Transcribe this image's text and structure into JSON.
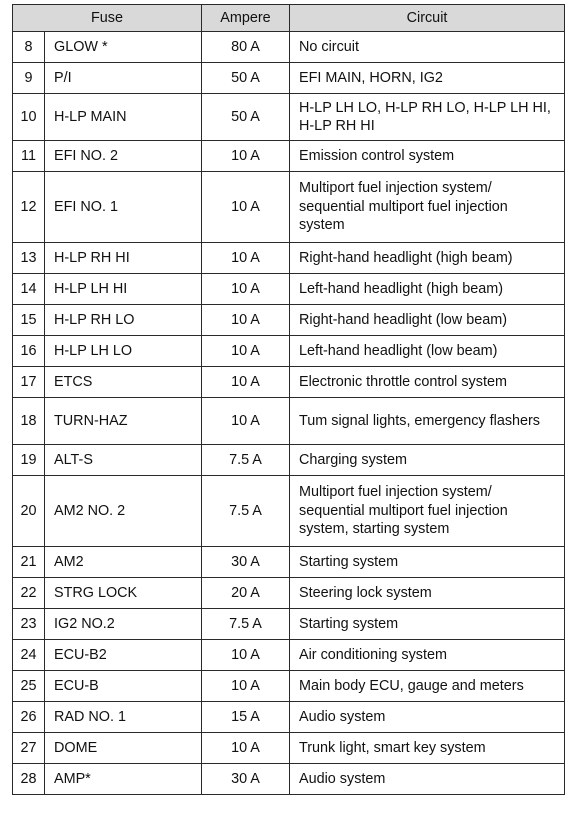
{
  "table": {
    "headers": {
      "fuse": "Fuse",
      "ampere": "Ampere",
      "circuit": "Circuit"
    },
    "rows": [
      {
        "no": "8",
        "fuse": "GLOW *",
        "ampere": "80 A",
        "circuit": "No circuit"
      },
      {
        "no": "9",
        "fuse": "P/I",
        "ampere": "50 A",
        "circuit": "EFI MAIN, HORN, IG2"
      },
      {
        "no": "10",
        "fuse": "H-LP MAIN",
        "ampere": "50 A",
        "circuit": "H-LP LH LO, H-LP RH LO, H-LP LH HI, H-LP RH HI"
      },
      {
        "no": "11",
        "fuse": "EFI NO. 2",
        "ampere": "10 A",
        "circuit": "Emission control system"
      },
      {
        "no": "12",
        "fuse": "EFI NO. 1",
        "ampere": "10 A",
        "circuit": "Multiport fuel injection system/ sequential multiport fuel injection system"
      },
      {
        "no": "13",
        "fuse": "H-LP RH HI",
        "ampere": "10 A",
        "circuit": "Right-hand headlight (high beam)"
      },
      {
        "no": "14",
        "fuse": "H-LP LH HI",
        "ampere": "10 A",
        "circuit": "Left-hand headlight (high beam)"
      },
      {
        "no": "15",
        "fuse": "H-LP RH LO",
        "ampere": "10 A",
        "circuit": "Right-hand headlight (low beam)"
      },
      {
        "no": "16",
        "fuse": "H-LP LH LO",
        "ampere": "10 A",
        "circuit": "Left-hand headlight (low beam)"
      },
      {
        "no": "17",
        "fuse": "ETCS",
        "ampere": "10 A",
        "circuit": "Electronic throttle control system"
      },
      {
        "no": "18",
        "fuse": "TURN-HAZ",
        "ampere": "10 A",
        "circuit": "Tum signal lights, emergency flashers"
      },
      {
        "no": "19",
        "fuse": "ALT-S",
        "ampere": "7.5 A",
        "circuit": "Charging system"
      },
      {
        "no": "20",
        "fuse": "AM2 NO. 2",
        "ampere": "7.5 A",
        "circuit": "Multiport fuel injection system/ sequential multiport fuel injection system, starting system"
      },
      {
        "no": "21",
        "fuse": "AM2",
        "ampere": "30 A",
        "circuit": "Starting system"
      },
      {
        "no": "22",
        "fuse": "STRG LOCK",
        "ampere": "20 A",
        "circuit": "Steering lock system"
      },
      {
        "no": "23",
        "fuse": "IG2 NO.2",
        "ampere": "7.5 A",
        "circuit": "Starting system"
      },
      {
        "no": "24",
        "fuse": "ECU-B2",
        "ampere": "10 A",
        "circuit": "Air conditioning system"
      },
      {
        "no": "25",
        "fuse": "ECU-B",
        "ampere": "10 A",
        "circuit": "Main body ECU, gauge and meters"
      },
      {
        "no": "26",
        "fuse": "RAD NO. 1",
        "ampere": "15 A",
        "circuit": "Audio system"
      },
      {
        "no": "27",
        "fuse": "DOME",
        "ampere": "10 A",
        "circuit": "Trunk light, smart key system"
      },
      {
        "no": "28",
        "fuse": "AMP*",
        "ampere": "30 A",
        "circuit": "Audio system"
      }
    ]
  },
  "colors": {
    "header_background": "#d9d9d9",
    "border": "#2a2a2a",
    "text": "#111111"
  }
}
